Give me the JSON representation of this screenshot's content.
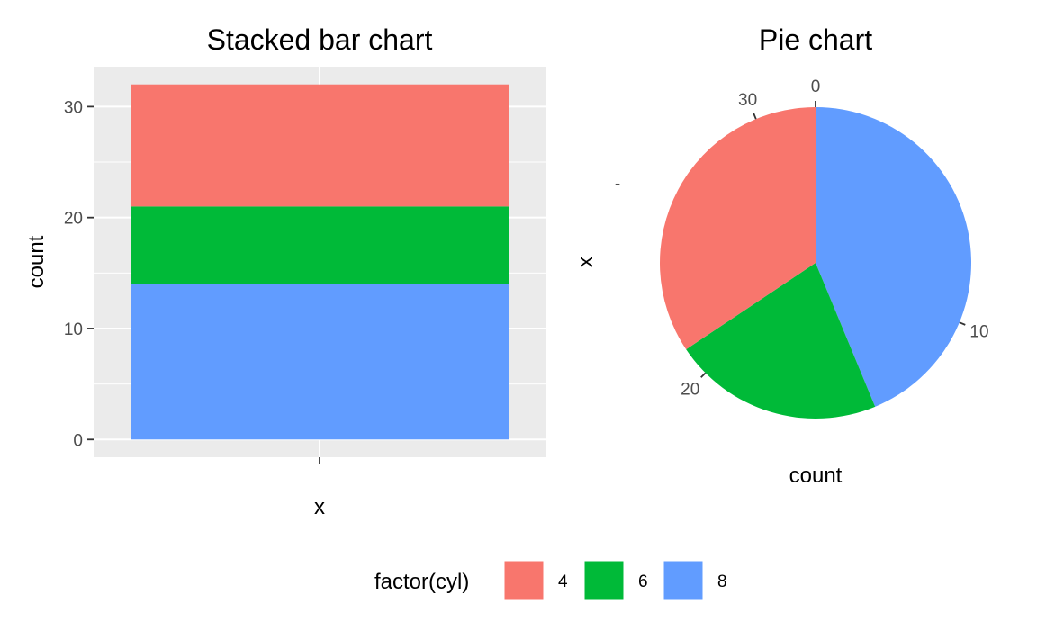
{
  "chart_data": [
    {
      "type": "bar",
      "title": "Stacked bar chart",
      "xlabel": "x",
      "ylabel": "count",
      "categories": [
        ""
      ],
      "series": [
        {
          "name": "4",
          "values": [
            11
          ]
        },
        {
          "name": "6",
          "values": [
            7
          ]
        },
        {
          "name": "8",
          "values": [
            14
          ]
        }
      ],
      "stack_order_top_to_bottom": [
        "4",
        "6",
        "8"
      ],
      "ylim": [
        -1.6,
        33.6
      ],
      "yticks": [
        0,
        10,
        20,
        30
      ],
      "grid": true
    },
    {
      "type": "pie",
      "title": "Pie chart",
      "xlabel": "count",
      "ylabel": "x",
      "x_tick_label": "-",
      "slices": [
        {
          "name": "8",
          "value": 14
        },
        {
          "name": "6",
          "value": 7
        },
        {
          "name": "4",
          "value": 11
        }
      ],
      "total": 32,
      "ticks": [
        0,
        10,
        20,
        30
      ],
      "direction": "clockwise",
      "start": "top"
    }
  ],
  "legend": {
    "title": "factor(cyl)",
    "placement": "bottom",
    "items": [
      {
        "label": "4",
        "color": "#F8766D"
      },
      {
        "label": "6",
        "color": "#00BA38"
      },
      {
        "label": "8",
        "color": "#619CFF"
      }
    ]
  },
  "colors": {
    "4": "#F8766D",
    "6": "#00BA38",
    "8": "#619CFF",
    "panel_background": "#EBEBEB",
    "grid": "#FFFFFF"
  }
}
